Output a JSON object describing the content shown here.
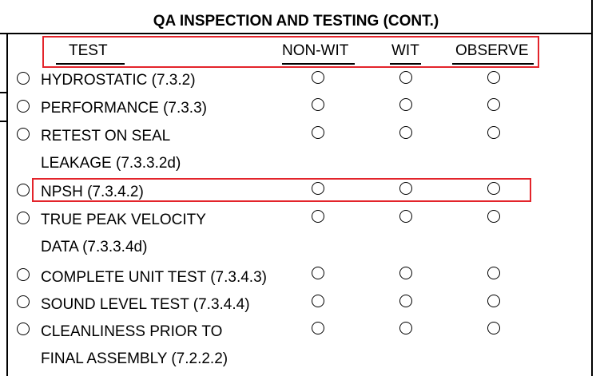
{
  "section": {
    "title": "QA INSPECTION AND TESTING (CONT.)"
  },
  "columns": {
    "test": "TEST",
    "non_wit": "NON-WIT",
    "wit": "WIT",
    "observe": "OBSERVE"
  },
  "rows": [
    {
      "lines": [
        "HYDROSTATIC (7.3.2)"
      ]
    },
    {
      "lines": [
        "PERFORMANCE (7.3.3)"
      ]
    },
    {
      "lines": [
        "RETEST ON SEAL",
        "LEAKAGE (7.3.3.2d)"
      ]
    },
    {
      "lines": [
        "NPSH (7.3.4.2)"
      ]
    },
    {
      "lines": [
        "TRUE PEAK VELOCITY",
        "DATA (7.3.3.4d)"
      ]
    },
    {
      "lines": [
        "COMPLETE UNIT TEST (7.3.4.3)"
      ]
    },
    {
      "lines": [
        "SOUND LEVEL TEST (7.3.4.4)"
      ]
    },
    {
      "lines": [
        "CLEANLINESS PRIOR TO",
        "FINAL ASSEMBLY (7.2.2.2)"
      ]
    }
  ],
  "colors": {
    "highlight": "#e3242b",
    "text": "#000000",
    "background": "#ffffff"
  }
}
